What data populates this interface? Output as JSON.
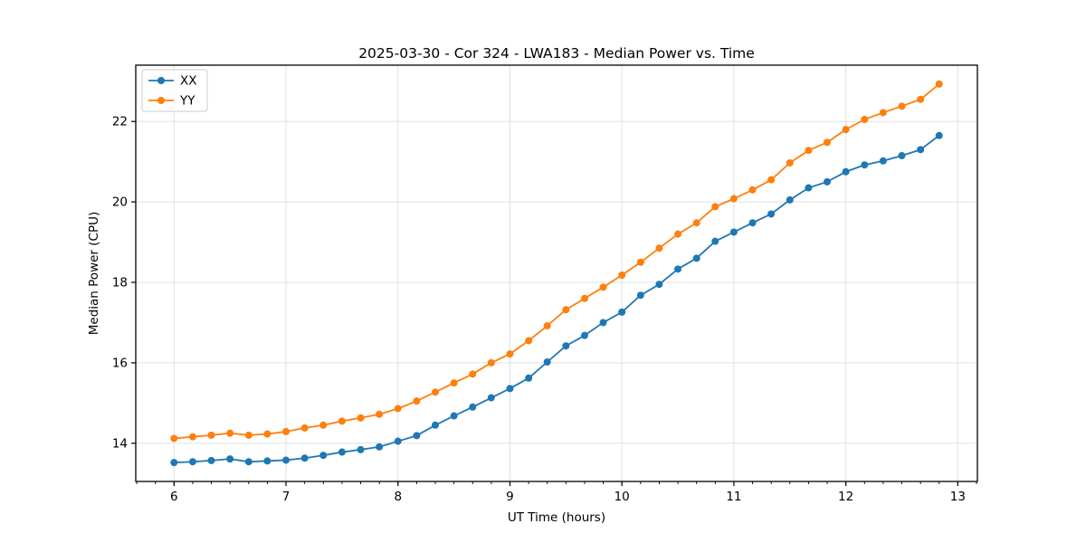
{
  "figure": {
    "title": "2025-03-30 - Cor 324 - LWA183 - Median Power vs. Time"
  },
  "chart_data": {
    "type": "line",
    "title": "2025-03-30 - Cor 324 - LWA183 - Median Power vs. Time",
    "xlabel": "UT Time (hours)",
    "ylabel": "Median Power (CPU)",
    "xlim": [
      5.658,
      13.175
    ],
    "ylim": [
      13.05,
      23.4
    ],
    "xticks": [
      6,
      7,
      8,
      9,
      10,
      11,
      12,
      13
    ],
    "yticks": [
      14,
      16,
      18,
      20,
      22
    ],
    "minor_tick_step_x": 0.16667,
    "grid": true,
    "grid_color": "#e0e0e0",
    "spine_color": "#000000",
    "legend_position": "upper-left",
    "marker": "circle",
    "x": [
      6,
      6.167,
      6.333,
      6.5,
      6.667,
      6.833,
      7,
      7.167,
      7.333,
      7.5,
      7.667,
      7.833,
      8,
      8.167,
      8.333,
      8.5,
      8.667,
      8.833,
      9,
      9.167,
      9.333,
      9.5,
      9.667,
      9.833,
      10,
      10.167,
      10.333,
      10.5,
      10.667,
      10.833,
      11,
      11.167,
      11.333,
      11.5,
      11.667,
      11.833,
      12,
      12.167,
      12.333,
      12.5,
      12.667,
      12.833
    ],
    "series": [
      {
        "name": "XX",
        "color": "#1f77b4",
        "values": [
          13.52,
          13.54,
          13.57,
          13.61,
          13.54,
          13.56,
          13.58,
          13.63,
          13.7,
          13.78,
          13.84,
          13.91,
          14.05,
          14.19,
          14.45,
          14.68,
          14.9,
          15.13,
          15.36,
          15.62,
          16.02,
          16.42,
          16.68,
          17.0,
          17.26,
          17.68,
          17.95,
          18.33,
          18.6,
          19.02,
          19.25,
          19.48,
          19.7,
          20.05,
          20.35,
          20.5,
          20.75,
          20.92,
          21.02,
          21.15,
          21.3,
          21.65
        ]
      },
      {
        "name": "YY",
        "color": "#ff7f0e",
        "values": [
          14.12,
          14.16,
          14.2,
          14.25,
          14.2,
          14.23,
          14.29,
          14.38,
          14.45,
          14.55,
          14.63,
          14.72,
          14.86,
          15.05,
          15.27,
          15.5,
          15.72,
          16.0,
          16.22,
          16.55,
          16.92,
          17.32,
          17.6,
          17.88,
          18.18,
          18.5,
          18.85,
          19.2,
          19.48,
          19.88,
          20.08,
          20.3,
          20.55,
          20.97,
          21.28,
          21.48,
          21.8,
          22.05,
          22.22,
          22.38,
          22.55,
          22.93
        ]
      }
    ]
  }
}
